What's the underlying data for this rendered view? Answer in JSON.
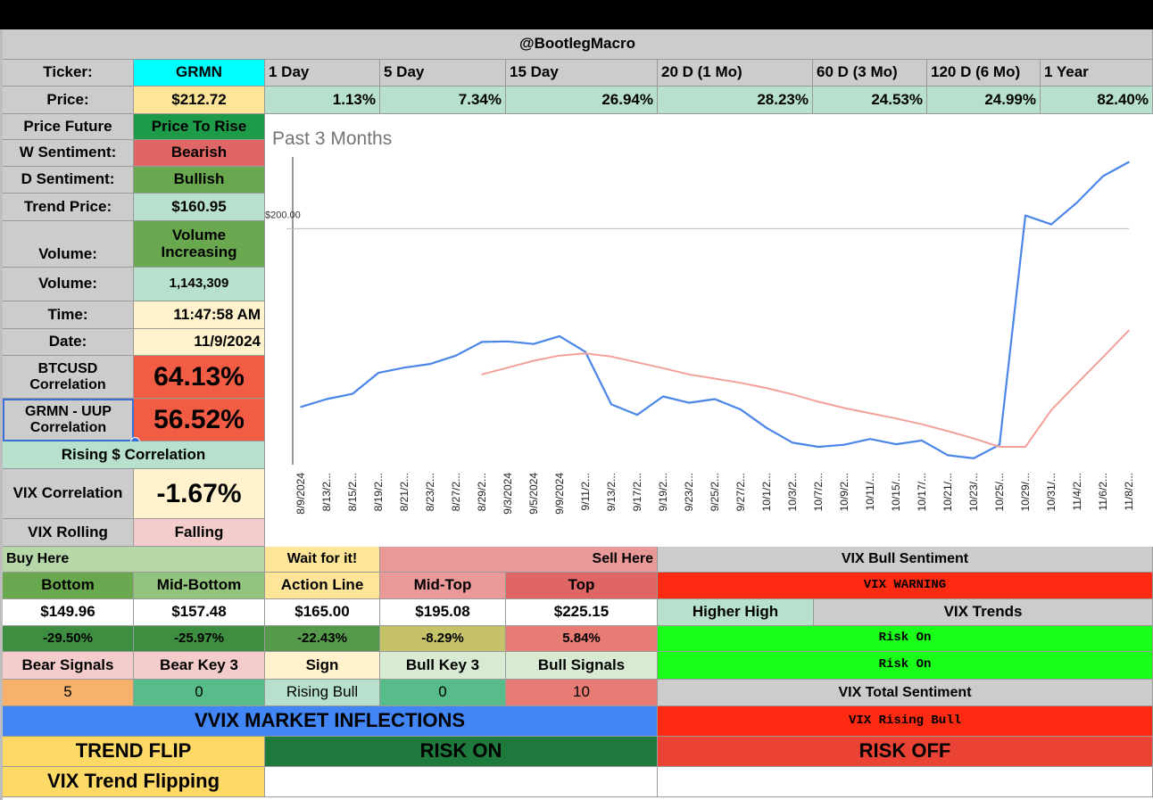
{
  "header": {
    "handle": "@BootlegMacro"
  },
  "ticker": {
    "label": "Ticker:",
    "value": "GRMN"
  },
  "price": {
    "label": "Price:",
    "value": "$212.72"
  },
  "periods": [
    "1 Day",
    "5 Day",
    "15 Day",
    "20 D (1 Mo)",
    "60 D (3 Mo)",
    "120 D (6 Mo)",
    "1 Year"
  ],
  "period_returns": [
    "1.13%",
    "7.34%",
    "26.94%",
    "28.23%",
    "24.53%",
    "24.99%",
    "82.40%"
  ],
  "info": {
    "price_future_label": "Price Future",
    "price_future_value": "Price To Rise",
    "w_sentiment_label": "W Sentiment:",
    "w_sentiment_value": "Bearish",
    "d_sentiment_label": "D Sentiment:",
    "d_sentiment_value": "Bullish",
    "trend_price_label": "Trend Price:",
    "trend_price_value": "$160.95",
    "volume_label": "Volume:",
    "volume_status": "Volume Increasing",
    "volume_count_label": "Volume:",
    "volume_count": "1,143,309",
    "time_label": "Time:",
    "time_value": "11:47:58 AM",
    "date_label": "Date:",
    "date_value": "11/9/2024",
    "btc_label": "BTCUSD Correlation",
    "btc_value": "64.13%",
    "uup_label": "GRMN - UUP Correlation",
    "uup_value": "56.52%",
    "rising_corr": "Rising $ Correlation",
    "vix_corr_label": "VIX Correlation",
    "vix_corr_value": "-1.67%",
    "vix_rolling_label": "VIX Rolling",
    "vix_rolling_value": "Falling"
  },
  "chart_data": {
    "type": "line",
    "title": "Past 3 Months",
    "ytick_label": "$200.00",
    "x": [
      "8/9/2024",
      "8/13/2024",
      "8/15/2024",
      "8/19/2024",
      "8/21/2024",
      "8/23/2024",
      "8/27/2024",
      "8/29/2024",
      "9/3/2024",
      "9/5/2024",
      "9/9/2024",
      "9/11/2024",
      "9/13/2024",
      "9/17/2024",
      "9/19/2024",
      "9/23/2024",
      "9/25/2024",
      "9/27/2024",
      "10/1/2024",
      "10/3/2024",
      "10/7/2024",
      "10/9/2024",
      "10/11/2024",
      "10/15/2024",
      "10/17/2024",
      "10/21/2024",
      "10/23/2024",
      "10/25/2024",
      "10/29/2024",
      "10/31/2024",
      "11/4/2024",
      "11/6/2024",
      "11/8/2024"
    ],
    "x_tick_labels": [
      "8/9/2024",
      "8/13/2...",
      "8/15/2...",
      "8/19/2...",
      "8/21/2...",
      "8/23/2...",
      "8/27/2...",
      "8/29/2...",
      "9/3/2024",
      "9/5/2024",
      "9/9/2024",
      "9/11/2...",
      "9/13/2...",
      "9/17/2...",
      "9/19/2...",
      "9/23/2...",
      "9/25/2...",
      "9/27/2...",
      "10/1/2...",
      "10/3/2...",
      "10/7/2...",
      "10/9/2...",
      "10/11/...",
      "10/15/...",
      "10/17/...",
      "10/21/...",
      "10/23/...",
      "10/25/...",
      "10/29/...",
      "10/31/...",
      "11/4/2...",
      "11/6/2...",
      "11/8/2..."
    ],
    "ylim": [
      155,
      214
    ],
    "series": [
      {
        "color": "#4a86e8",
        "values": [
          166.0,
          167.5,
          168.5,
          172.5,
          173.5,
          174.2,
          175.8,
          178.4,
          178.5,
          178.0,
          179.5,
          176.5,
          166.5,
          164.5,
          168.0,
          166.8,
          167.5,
          165.5,
          162.0,
          159.2,
          158.4,
          158.8,
          159.9,
          158.9,
          159.6,
          156.8,
          156.2,
          158.8,
          202.5,
          200.8,
          205.0,
          210.0,
          212.7
        ]
      },
      {
        "color": "#f4a09a",
        "values": [
          null,
          null,
          null,
          null,
          null,
          null,
          null,
          172.2,
          173.5,
          174.8,
          175.8,
          176.2,
          175.6,
          174.5,
          173.4,
          172.2,
          171.4,
          170.6,
          169.6,
          168.4,
          167.0,
          165.8,
          164.8,
          163.8,
          162.7,
          161.4,
          160.0,
          158.4,
          158.4,
          165.4,
          170.5,
          175.5,
          180.6
        ]
      }
    ]
  },
  "levels": {
    "buy_here": "Buy Here",
    "wait": "Wait for it!",
    "sell_here": "Sell Here",
    "headers": [
      "Bottom",
      "Mid-Bottom",
      "Action Line",
      "Mid-Top",
      "Top"
    ],
    "prices": [
      "$149.96",
      "$157.48",
      "$165.00",
      "$195.08",
      "$225.15"
    ],
    "pcts": [
      "-29.50%",
      "-25.97%",
      "-22.43%",
      "-8.29%",
      "5.84%"
    ]
  },
  "signals": {
    "headers": [
      "Bear Signals",
      "Bear Key 3",
      "Sign",
      "Bull Key 3",
      "Bull Signals"
    ],
    "values": [
      "5",
      "0",
      "Rising Bull",
      "0",
      "10"
    ]
  },
  "vix": {
    "bull_sentiment_label": "VIX Bull Sentiment",
    "warning": "VIX WARNING",
    "higher_high": "Higher High",
    "trends_label": "VIX Trends",
    "risk_on_1": "Risk On",
    "risk_on_2": "Risk On",
    "total_sentiment_label": "VIX Total Sentiment",
    "rising_bull": "VIX Rising Bull"
  },
  "inflections": {
    "title": "VVIX MARKET INFLECTIONS",
    "trend_flip": "TREND FLIP",
    "risk_on": "RISK ON",
    "risk_off": "RISK OFF",
    "vix_trend_flipping": "VIX Trend Flipping"
  },
  "colors": {
    "header_gray": "#cccccc",
    "cyan": "#00ffff",
    "light_yellow": "#ffe599",
    "light_green": "#b7e1cd",
    "green": "#6aa84f",
    "dark_green": "#1e7a3c",
    "red_soft": "#e06666",
    "red": "#ff3b24",
    "lime": "#1aff1a",
    "blue": "#4285f4",
    "orange": "#f6b26b",
    "gold": "#ffd966"
  }
}
